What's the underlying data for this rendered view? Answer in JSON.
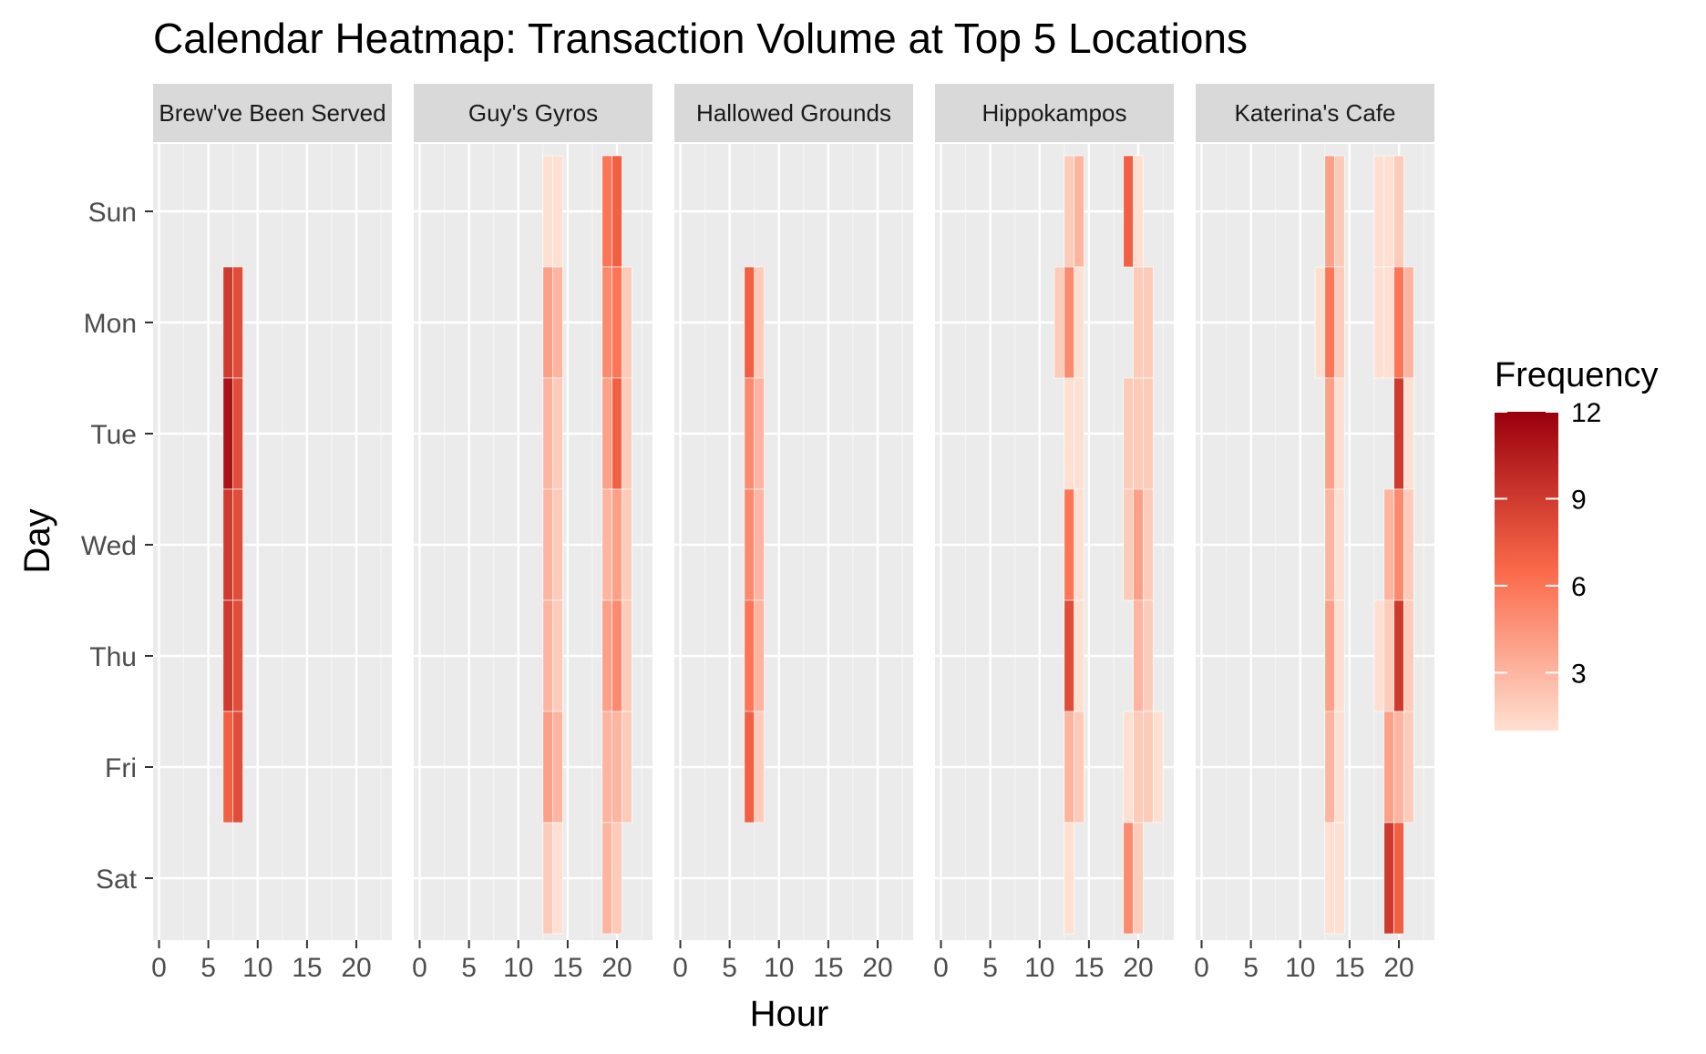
{
  "chart_data": {
    "type": "heatmap",
    "title": "Calendar Heatmap: Transaction Volume at Top 5 Locations",
    "xlabel": "Hour",
    "ylabel": "Day",
    "xlim": [
      0,
      24
    ],
    "x_ticks": [
      "0",
      "5",
      "10",
      "15",
      "20"
    ],
    "x_tick_values": [
      0,
      5,
      10,
      15,
      20
    ],
    "y_categories": [
      "Sun",
      "Mon",
      "Tue",
      "Wed",
      "Thu",
      "Fri",
      "Sat"
    ],
    "facets": [
      "Brew've Been Served",
      "Guy's Gyros",
      "Hallowed Grounds",
      "Hippokampos",
      "Katerina's Cafe"
    ],
    "grid": true,
    "legend": {
      "title": "Frequency",
      "placement": "right",
      "ticks": [
        "3",
        "6",
        "9",
        "12"
      ],
      "tick_values": [
        3,
        6,
        9,
        12
      ],
      "min": 1,
      "max": 12,
      "low_color": "#fee0d2",
      "mid_color": "#fb6a4a",
      "high_color": "#99000d"
    },
    "cells": [
      {
        "facet": "Brew've Been Served",
        "day": "Mon",
        "hour": 7,
        "value": 9
      },
      {
        "facet": "Brew've Been Served",
        "day": "Mon",
        "hour": 8,
        "value": 8
      },
      {
        "facet": "Brew've Been Served",
        "day": "Tue",
        "hour": 7,
        "value": 11
      },
      {
        "facet": "Brew've Been Served",
        "day": "Tue",
        "hour": 8,
        "value": 8
      },
      {
        "facet": "Brew've Been Served",
        "day": "Wed",
        "hour": 7,
        "value": 9
      },
      {
        "facet": "Brew've Been Served",
        "day": "Wed",
        "hour": 8,
        "value": 8
      },
      {
        "facet": "Brew've Been Served",
        "day": "Thu",
        "hour": 7,
        "value": 9
      },
      {
        "facet": "Brew've Been Served",
        "day": "Thu",
        "hour": 8,
        "value": 8
      },
      {
        "facet": "Brew've Been Served",
        "day": "Fri",
        "hour": 7,
        "value": 7
      },
      {
        "facet": "Brew've Been Served",
        "day": "Fri",
        "hour": 8,
        "value": 8
      },
      {
        "facet": "Guy's Gyros",
        "day": "Sun",
        "hour": 13,
        "value": 1
      },
      {
        "facet": "Guy's Gyros",
        "day": "Sun",
        "hour": 14,
        "value": 1
      },
      {
        "facet": "Guy's Gyros",
        "day": "Sun",
        "hour": 19,
        "value": 6
      },
      {
        "facet": "Guy's Gyros",
        "day": "Sun",
        "hour": 20,
        "value": 7
      },
      {
        "facet": "Guy's Gyros",
        "day": "Mon",
        "hour": 13,
        "value": 4
      },
      {
        "facet": "Guy's Gyros",
        "day": "Mon",
        "hour": 14,
        "value": 3
      },
      {
        "facet": "Guy's Gyros",
        "day": "Mon",
        "hour": 19,
        "value": 5
      },
      {
        "facet": "Guy's Gyros",
        "day": "Mon",
        "hour": 20,
        "value": 6
      },
      {
        "facet": "Guy's Gyros",
        "day": "Mon",
        "hour": 21,
        "value": 2
      },
      {
        "facet": "Guy's Gyros",
        "day": "Tue",
        "hour": 13,
        "value": 3
      },
      {
        "facet": "Guy's Gyros",
        "day": "Tue",
        "hour": 14,
        "value": 2
      },
      {
        "facet": "Guy's Gyros",
        "day": "Tue",
        "hour": 19,
        "value": 4
      },
      {
        "facet": "Guy's Gyros",
        "day": "Tue",
        "hour": 20,
        "value": 7
      },
      {
        "facet": "Guy's Gyros",
        "day": "Tue",
        "hour": 21,
        "value": 2
      },
      {
        "facet": "Guy's Gyros",
        "day": "Wed",
        "hour": 13,
        "value": 3
      },
      {
        "facet": "Guy's Gyros",
        "day": "Wed",
        "hour": 14,
        "value": 2
      },
      {
        "facet": "Guy's Gyros",
        "day": "Wed",
        "hour": 19,
        "value": 3
      },
      {
        "facet": "Guy's Gyros",
        "day": "Wed",
        "hour": 20,
        "value": 4
      },
      {
        "facet": "Guy's Gyros",
        "day": "Wed",
        "hour": 21,
        "value": 2
      },
      {
        "facet": "Guy's Gyros",
        "day": "Thu",
        "hour": 13,
        "value": 3
      },
      {
        "facet": "Guy's Gyros",
        "day": "Thu",
        "hour": 14,
        "value": 2
      },
      {
        "facet": "Guy's Gyros",
        "day": "Thu",
        "hour": 19,
        "value": 4
      },
      {
        "facet": "Guy's Gyros",
        "day": "Thu",
        "hour": 20,
        "value": 5
      },
      {
        "facet": "Guy's Gyros",
        "day": "Thu",
        "hour": 21,
        "value": 2
      },
      {
        "facet": "Guy's Gyros",
        "day": "Fri",
        "hour": 13,
        "value": 4
      },
      {
        "facet": "Guy's Gyros",
        "day": "Fri",
        "hour": 14,
        "value": 3
      },
      {
        "facet": "Guy's Gyros",
        "day": "Fri",
        "hour": 19,
        "value": 3
      },
      {
        "facet": "Guy's Gyros",
        "day": "Fri",
        "hour": 20,
        "value": 3
      },
      {
        "facet": "Guy's Gyros",
        "day": "Fri",
        "hour": 21,
        "value": 2
      },
      {
        "facet": "Guy's Gyros",
        "day": "Sat",
        "hour": 13,
        "value": 2
      },
      {
        "facet": "Guy's Gyros",
        "day": "Sat",
        "hour": 14,
        "value": 1
      },
      {
        "facet": "Guy's Gyros",
        "day": "Sat",
        "hour": 19,
        "value": 3
      },
      {
        "facet": "Guy's Gyros",
        "day": "Sat",
        "hour": 20,
        "value": 2
      },
      {
        "facet": "Hallowed Grounds",
        "day": "Mon",
        "hour": 7,
        "value": 7
      },
      {
        "facet": "Hallowed Grounds",
        "day": "Mon",
        "hour": 8,
        "value": 2
      },
      {
        "facet": "Hallowed Grounds",
        "day": "Tue",
        "hour": 7,
        "value": 5
      },
      {
        "facet": "Hallowed Grounds",
        "day": "Tue",
        "hour": 8,
        "value": 3
      },
      {
        "facet": "Hallowed Grounds",
        "day": "Wed",
        "hour": 7,
        "value": 5
      },
      {
        "facet": "Hallowed Grounds",
        "day": "Wed",
        "hour": 8,
        "value": 3
      },
      {
        "facet": "Hallowed Grounds",
        "day": "Thu",
        "hour": 7,
        "value": 6
      },
      {
        "facet": "Hallowed Grounds",
        "day": "Thu",
        "hour": 8,
        "value": 3
      },
      {
        "facet": "Hallowed Grounds",
        "day": "Fri",
        "hour": 7,
        "value": 7
      },
      {
        "facet": "Hallowed Grounds",
        "day": "Fri",
        "hour": 8,
        "value": 2
      },
      {
        "facet": "Hippokampos",
        "day": "Sun",
        "hour": 13,
        "value": 2
      },
      {
        "facet": "Hippokampos",
        "day": "Sun",
        "hour": 14,
        "value": 3
      },
      {
        "facet": "Hippokampos",
        "day": "Sun",
        "hour": 19,
        "value": 7
      },
      {
        "facet": "Hippokampos",
        "day": "Sun",
        "hour": 20,
        "value": 1
      },
      {
        "facet": "Hippokampos",
        "day": "Mon",
        "hour": 12,
        "value": 2
      },
      {
        "facet": "Hippokampos",
        "day": "Mon",
        "hour": 13,
        "value": 5
      },
      {
        "facet": "Hippokampos",
        "day": "Mon",
        "hour": 14,
        "value": 1
      },
      {
        "facet": "Hippokampos",
        "day": "Mon",
        "hour": 20,
        "value": 2
      },
      {
        "facet": "Hippokampos",
        "day": "Mon",
        "hour": 21,
        "value": 2
      },
      {
        "facet": "Hippokampos",
        "day": "Tue",
        "hour": 13,
        "value": 1
      },
      {
        "facet": "Hippokampos",
        "day": "Tue",
        "hour": 14,
        "value": 1
      },
      {
        "facet": "Hippokampos",
        "day": "Tue",
        "hour": 19,
        "value": 2
      },
      {
        "facet": "Hippokampos",
        "day": "Tue",
        "hour": 20,
        "value": 2
      },
      {
        "facet": "Hippokampos",
        "day": "Tue",
        "hour": 21,
        "value": 2
      },
      {
        "facet": "Hippokampos",
        "day": "Wed",
        "hour": 13,
        "value": 6
      },
      {
        "facet": "Hippokampos",
        "day": "Wed",
        "hour": 14,
        "value": 1
      },
      {
        "facet": "Hippokampos",
        "day": "Wed",
        "hour": 19,
        "value": 2
      },
      {
        "facet": "Hippokampos",
        "day": "Wed",
        "hour": 20,
        "value": 4
      },
      {
        "facet": "Hippokampos",
        "day": "Wed",
        "hour": 21,
        "value": 2
      },
      {
        "facet": "Hippokampos",
        "day": "Thu",
        "hour": 13,
        "value": 8
      },
      {
        "facet": "Hippokampos",
        "day": "Thu",
        "hour": 14,
        "value": 1
      },
      {
        "facet": "Hippokampos",
        "day": "Thu",
        "hour": 20,
        "value": 3
      },
      {
        "facet": "Hippokampos",
        "day": "Thu",
        "hour": 21,
        "value": 2
      },
      {
        "facet": "Hippokampos",
        "day": "Fri",
        "hour": 13,
        "value": 3
      },
      {
        "facet": "Hippokampos",
        "day": "Fri",
        "hour": 14,
        "value": 2
      },
      {
        "facet": "Hippokampos",
        "day": "Fri",
        "hour": 19,
        "value": 1
      },
      {
        "facet": "Hippokampos",
        "day": "Fri",
        "hour": 20,
        "value": 2
      },
      {
        "facet": "Hippokampos",
        "day": "Fri",
        "hour": 21,
        "value": 2
      },
      {
        "facet": "Hippokampos",
        "day": "Fri",
        "hour": 22,
        "value": 1
      },
      {
        "facet": "Hippokampos",
        "day": "Sat",
        "hour": 13,
        "value": 1
      },
      {
        "facet": "Hippokampos",
        "day": "Sat",
        "hour": 19,
        "value": 5
      },
      {
        "facet": "Hippokampos",
        "day": "Sat",
        "hour": 20,
        "value": 2
      },
      {
        "facet": "Katerina's Cafe",
        "day": "Sun",
        "hour": 13,
        "value": 4
      },
      {
        "facet": "Katerina's Cafe",
        "day": "Sun",
        "hour": 14,
        "value": 2
      },
      {
        "facet": "Katerina's Cafe",
        "day": "Sun",
        "hour": 18,
        "value": 1
      },
      {
        "facet": "Katerina's Cafe",
        "day": "Sun",
        "hour": 19,
        "value": 1
      },
      {
        "facet": "Katerina's Cafe",
        "day": "Sun",
        "hour": 20,
        "value": 2
      },
      {
        "facet": "Katerina's Cafe",
        "day": "Mon",
        "hour": 12,
        "value": 1
      },
      {
        "facet": "Katerina's Cafe",
        "day": "Mon",
        "hour": 13,
        "value": 6
      },
      {
        "facet": "Katerina's Cafe",
        "day": "Mon",
        "hour": 14,
        "value": 2
      },
      {
        "facet": "Katerina's Cafe",
        "day": "Mon",
        "hour": 18,
        "value": 1
      },
      {
        "facet": "Katerina's Cafe",
        "day": "Mon",
        "hour": 19,
        "value": 1
      },
      {
        "facet": "Katerina's Cafe",
        "day": "Mon",
        "hour": 20,
        "value": 6
      },
      {
        "facet": "Katerina's Cafe",
        "day": "Mon",
        "hour": 21,
        "value": 3
      },
      {
        "facet": "Katerina's Cafe",
        "day": "Tue",
        "hour": 13,
        "value": 4
      },
      {
        "facet": "Katerina's Cafe",
        "day": "Tue",
        "hour": 14,
        "value": 1
      },
      {
        "facet": "Katerina's Cafe",
        "day": "Tue",
        "hour": 20,
        "value": 9
      },
      {
        "facet": "Katerina's Cafe",
        "day": "Tue",
        "hour": 21,
        "value": 1
      },
      {
        "facet": "Katerina's Cafe",
        "day": "Wed",
        "hour": 13,
        "value": 3
      },
      {
        "facet": "Katerina's Cafe",
        "day": "Wed",
        "hour": 14,
        "value": 1
      },
      {
        "facet": "Katerina's Cafe",
        "day": "Wed",
        "hour": 19,
        "value": 3
      },
      {
        "facet": "Katerina's Cafe",
        "day": "Wed",
        "hour": 20,
        "value": 5
      },
      {
        "facet": "Katerina's Cafe",
        "day": "Wed",
        "hour": 21,
        "value": 2
      },
      {
        "facet": "Katerina's Cafe",
        "day": "Thu",
        "hour": 13,
        "value": 4
      },
      {
        "facet": "Katerina's Cafe",
        "day": "Thu",
        "hour": 14,
        "value": 1
      },
      {
        "facet": "Katerina's Cafe",
        "day": "Thu",
        "hour": 18,
        "value": 1
      },
      {
        "facet": "Katerina's Cafe",
        "day": "Thu",
        "hour": 19,
        "value": 2
      },
      {
        "facet": "Katerina's Cafe",
        "day": "Thu",
        "hour": 20,
        "value": 9
      },
      {
        "facet": "Katerina's Cafe",
        "day": "Thu",
        "hour": 21,
        "value": 2
      },
      {
        "facet": "Katerina's Cafe",
        "day": "Fri",
        "hour": 13,
        "value": 3
      },
      {
        "facet": "Katerina's Cafe",
        "day": "Fri",
        "hour": 14,
        "value": 1
      },
      {
        "facet": "Katerina's Cafe",
        "day": "Fri",
        "hour": 19,
        "value": 4
      },
      {
        "facet": "Katerina's Cafe",
        "day": "Fri",
        "hour": 20,
        "value": 3
      },
      {
        "facet": "Katerina's Cafe",
        "day": "Fri",
        "hour": 21,
        "value": 2
      },
      {
        "facet": "Katerina's Cafe",
        "day": "Sat",
        "hour": 13,
        "value": 1
      },
      {
        "facet": "Katerina's Cafe",
        "day": "Sat",
        "hour": 14,
        "value": 1
      },
      {
        "facet": "Katerina's Cafe",
        "day": "Sat",
        "hour": 19,
        "value": 9
      },
      {
        "facet": "Katerina's Cafe",
        "day": "Sat",
        "hour": 20,
        "value": 7
      }
    ]
  }
}
